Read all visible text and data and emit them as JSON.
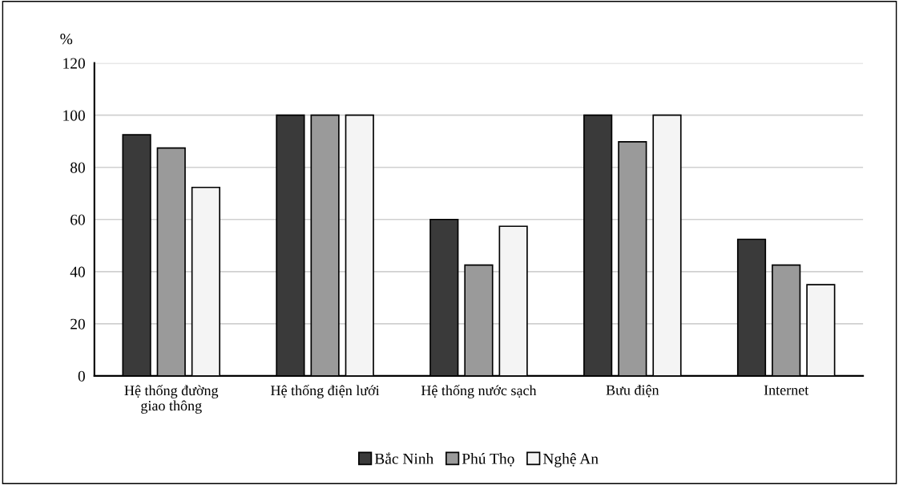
{
  "chart_data": {
    "type": "bar",
    "ylabel": "%",
    "categories": [
      "Hệ thống đường giao thông",
      "Hệ thống điện lưới",
      "Hệ thống nước sạch",
      "Bưu điện",
      "Internet"
    ],
    "series": [
      {
        "name": "Bắc Ninh",
        "color": "#3a3a3a",
        "values": [
          92.5,
          100,
          60,
          100,
          52.4
        ]
      },
      {
        "name": "Phú Thọ",
        "color": "#9a9a9a",
        "values": [
          87.4,
          100,
          42.5,
          89.8,
          42.5
        ]
      },
      {
        "name": "Nghệ An",
        "color": "#f4f4f4",
        "values": [
          72.3,
          100,
          57.4,
          100,
          35
        ]
      }
    ],
    "ylim": [
      0,
      120
    ],
    "yticks": [
      0,
      20,
      40,
      60,
      80,
      100,
      120
    ],
    "grid": "y",
    "legend": "bottom"
  }
}
